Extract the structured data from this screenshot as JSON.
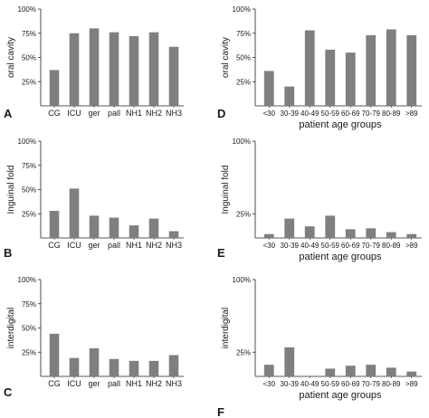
{
  "chart_data": [
    {
      "panel": "A",
      "type": "bar",
      "ylabel": "oral cavity",
      "xlabel": "",
      "categories": [
        "CG",
        "ICU",
        "ger",
        "pall",
        "NH1",
        "NH2",
        "NH3"
      ],
      "values": [
        37,
        75,
        80,
        76,
        72,
        76,
        61
      ],
      "ylim": [
        0,
        100
      ],
      "yticks": [
        "25%",
        "50%",
        "75%",
        "100%"
      ],
      "bar_color": "#7f7f7f"
    },
    {
      "panel": "D",
      "type": "bar",
      "ylabel": "oral cavity",
      "xlabel": "patient age groups",
      "categories": [
        "<30",
        "30-39",
        "40-49",
        "50-59",
        "60-69",
        "70-79",
        "80-89",
        ">89"
      ],
      "values": [
        36,
        20,
        78,
        58,
        55,
        73,
        79,
        73
      ],
      "ylim": [
        0,
        100
      ],
      "yticks": [
        "25%",
        "50%",
        "75%",
        "100%"
      ],
      "bar_color": "#7f7f7f"
    },
    {
      "panel": "B",
      "type": "bar",
      "ylabel": "Inguinal fold",
      "xlabel": "",
      "categories": [
        "CG",
        "ICU",
        "ger",
        "pall",
        "NH1",
        "NH2",
        "NH3"
      ],
      "values": [
        28,
        51,
        23,
        21,
        13,
        20,
        7
      ],
      "ylim": [
        0,
        100
      ],
      "yticks": [
        "25%",
        "50%",
        "75%",
        "100%"
      ],
      "bar_color": "#7f7f7f"
    },
    {
      "panel": "E",
      "type": "bar",
      "ylabel": "Inguinal fold",
      "xlabel": "patient age groups",
      "categories": [
        "<30",
        "30-39",
        "40-49",
        "50-59",
        "60-69",
        "70-79",
        "80-89",
        ">89"
      ],
      "values": [
        4,
        20,
        12,
        23,
        9,
        10,
        6,
        4
      ],
      "ylim": [
        0,
        100
      ],
      "yticks": [
        "25%",
        "100%"
      ],
      "bar_color": "#7f7f7f"
    },
    {
      "panel": "C",
      "type": "bar",
      "ylabel": "interdigital",
      "xlabel": "",
      "categories": [
        "CG",
        "ICU",
        "ger",
        "pall",
        "NH1",
        "NH2",
        "NH3"
      ],
      "values": [
        44,
        19,
        29,
        18,
        16,
        16,
        22
      ],
      "ylim": [
        0,
        100
      ],
      "yticks": [
        "25%",
        "50%",
        "75%",
        "100%"
      ],
      "bar_color": "#7f7f7f"
    },
    {
      "panel": "F",
      "type": "bar",
      "ylabel": "interdigital",
      "xlabel": "patient age groups",
      "categories": [
        "<30",
        "30-39",
        "40-49",
        "50-59",
        "60-69",
        "70-79",
        "80-89",
        ">89"
      ],
      "values": [
        12,
        30,
        0,
        8,
        11,
        12,
        9,
        5
      ],
      "ylim": [
        0,
        100
      ],
      "yticks": [
        "25%",
        "100%"
      ],
      "bar_color": "#7f7f7f"
    }
  ]
}
